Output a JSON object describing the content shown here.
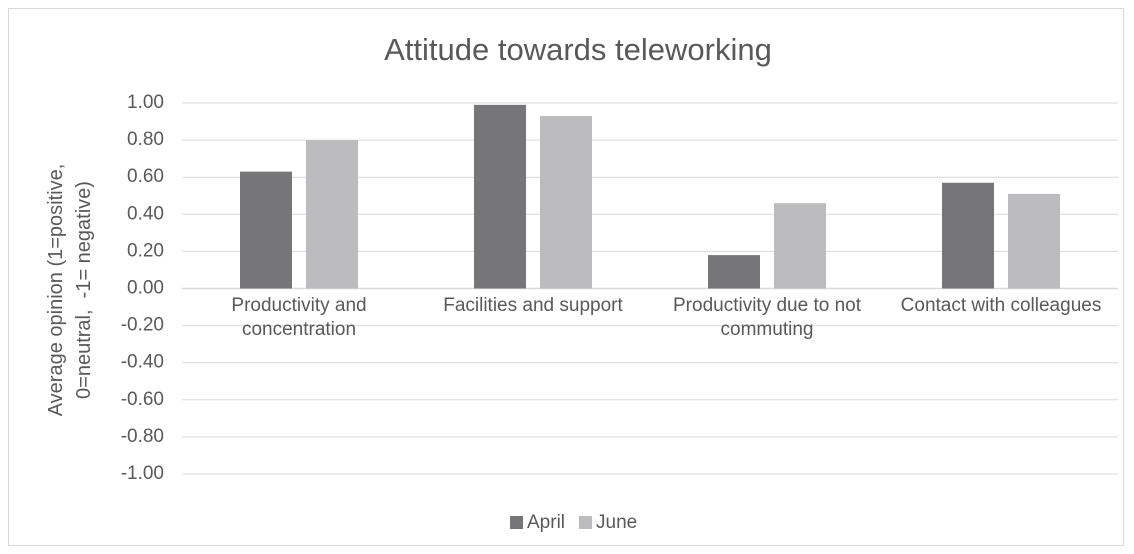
{
  "chart_data": {
    "type": "bar",
    "title": "Attitude towards teleworking",
    "y_label": "Average opinion (1=positive, 0=neutral,  -1= negative)",
    "categories": [
      "Productivity and concentration",
      "Facilities and support",
      "Productivity due to not commuting",
      "Contact with colleagues"
    ],
    "series": [
      {
        "name": "April",
        "color": "#767679",
        "values": [
          0.63,
          0.99,
          0.18,
          0.57
        ]
      },
      {
        "name": "June",
        "color": "#bcbcbe",
        "values": [
          0.8,
          0.93,
          0.46,
          0.51
        ]
      }
    ],
    "ylim": [
      -1,
      1
    ],
    "yticks": [
      {
        "value": -1,
        "label": "-1.00"
      },
      {
        "value": -0.8,
        "label": "-0.80"
      },
      {
        "value": -0.6,
        "label": "-0.60"
      },
      {
        "value": -0.4,
        "label": "-0.40"
      },
      {
        "value": -0.2,
        "label": "-0.20"
      },
      {
        "value": 0,
        "label": "0.00"
      },
      {
        "value": 0.2,
        "label": "0.20"
      },
      {
        "value": 0.4,
        "label": "0.40"
      },
      {
        "value": 0.6,
        "label": "0.60"
      },
      {
        "value": 0.8,
        "label": "0.80"
      },
      {
        "value": 1,
        "label": "1.00"
      }
    ],
    "grid": true,
    "legend": "bottom"
  }
}
